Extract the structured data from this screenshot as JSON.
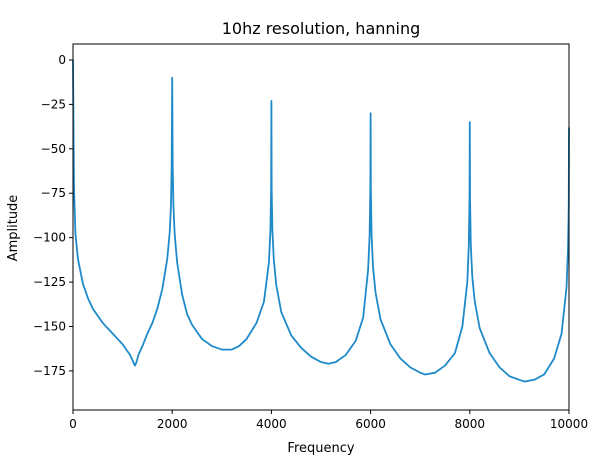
{
  "chart_data": {
    "type": "line",
    "title": "10hz resolution, hanning",
    "xlabel": "Frequency",
    "ylabel": "Amplitude",
    "xlim": [
      0,
      10000
    ],
    "ylim": [
      -197,
      9
    ],
    "xticks": [
      0,
      2000,
      4000,
      6000,
      8000,
      10000
    ],
    "yticks": [
      0,
      -25,
      -50,
      -75,
      -100,
      -125,
      -150,
      -175
    ],
    "grid": false,
    "line_color": "#1f8ac9",
    "series": [
      {
        "x": [
          0,
          20,
          50,
          100,
          200,
          300,
          400,
          500,
          600,
          700,
          800,
          900,
          1000,
          1100,
          1150,
          1200,
          1230,
          1250,
          1280,
          1320,
          1400,
          1500,
          1600,
          1700,
          1800,
          1900,
          1950,
          1975,
          1990,
          2000,
          2010,
          2025,
          2050,
          2100,
          2200,
          2300,
          2400,
          2600,
          2800,
          3000,
          3200,
          3350,
          3500,
          3700,
          3850,
          3950,
          3980,
          3995,
          4000,
          4005,
          4020,
          4050,
          4100,
          4200,
          4400,
          4600,
          4800,
          5000,
          5150,
          5300,
          5500,
          5700,
          5850,
          5950,
          5980,
          5995,
          6000,
          6005,
          6020,
          6050,
          6100,
          6200,
          6400,
          6600,
          6800,
          7000,
          7100,
          7300,
          7500,
          7700,
          7850,
          7950,
          7980,
          7995,
          8000,
          8005,
          8020,
          8050,
          8100,
          8200,
          8400,
          8600,
          8800,
          9000,
          9100,
          9300,
          9500,
          9700,
          9850,
          9950,
          9980,
          9995,
          10000
        ],
        "values": [
          0,
          -72,
          -98,
          -112,
          -126,
          -134,
          -140,
          -144,
          -148,
          -151,
          -154,
          -157,
          -160,
          -164,
          -166,
          -169,
          -171,
          -172,
          -170,
          -166,
          -161,
          -154,
          -148,
          -140,
          -129,
          -112,
          -97,
          -82,
          -60,
          -10,
          -60,
          -82,
          -98,
          -114,
          -132,
          -143,
          -149,
          -157,
          -161,
          -163,
          -163,
          -161,
          -157,
          -148,
          -136,
          -114,
          -96,
          -72,
          -23,
          -72,
          -96,
          -113,
          -127,
          -142,
          -155,
          -162,
          -167,
          -170,
          -171,
          -170,
          -166,
          -158,
          -145,
          -118,
          -99,
          -72,
          -30,
          -72,
          -99,
          -117,
          -131,
          -146,
          -160,
          -168,
          -173,
          -176,
          -177,
          -176,
          -172,
          -165,
          -150,
          -125,
          -104,
          -78,
          -35,
          -78,
          -104,
          -122,
          -136,
          -151,
          -165,
          -173,
          -178,
          -180,
          -181,
          -180,
          -177,
          -168,
          -154,
          -128,
          -106,
          -82,
          -38
        ]
      }
    ]
  }
}
